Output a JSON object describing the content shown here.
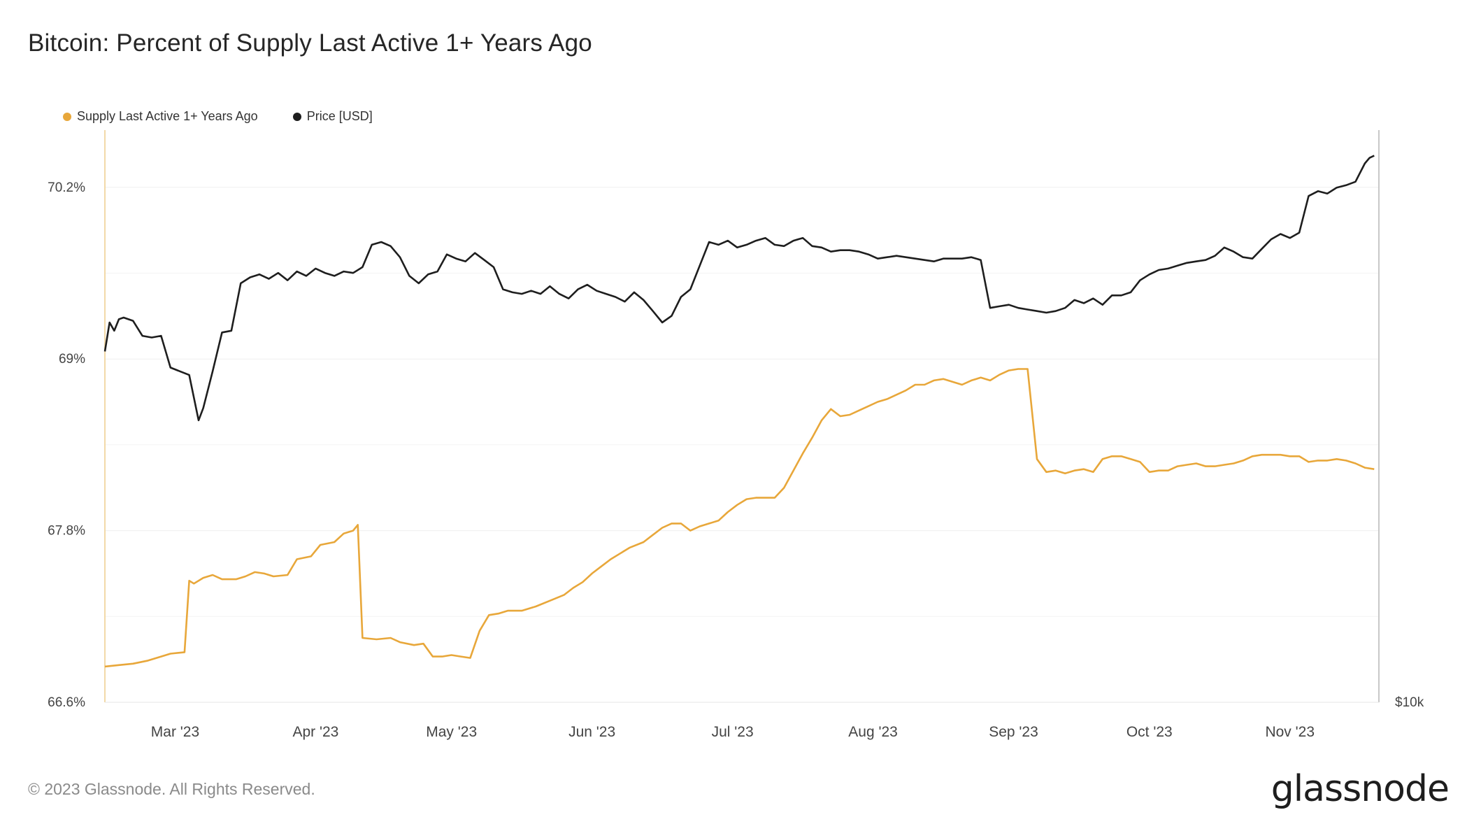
{
  "chart_data": {
    "type": "line",
    "title": "Bitcoin: Percent of Supply Last Active 1+ Years Ago",
    "legend": [
      {
        "name": "Supply Last Active 1+ Years Ago",
        "color": "#e8a73a"
      },
      {
        "name": "Price [USD]",
        "color": "#1e1e1e"
      }
    ],
    "x_ticks": [
      "Mar '23",
      "Apr '23",
      "May '23",
      "Jun '23",
      "Jul '23",
      "Aug '23",
      "Sep '23",
      "Oct '23",
      "Nov '23"
    ],
    "x_range_days": [
      0,
      272
    ],
    "x_tick_days": [
      15,
      45,
      74,
      104,
      134,
      164,
      194,
      223,
      253
    ],
    "y_left": {
      "ticks": [
        "70.2%",
        "69%",
        "67.8%",
        "66.6%"
      ],
      "tick_values": [
        70.2,
        69.0,
        67.8,
        66.6
      ],
      "range": [
        66.6,
        70.6
      ]
    },
    "y_right": {
      "ticks": [
        "$10k"
      ],
      "scale": "log",
      "range_usd": [
        10000,
        40000
      ]
    },
    "series": [
      {
        "name": "Supply Last Active 1+ Years Ago",
        "axis": "left",
        "color": "#e8a73a",
        "points": [
          [
            0,
            66.85
          ],
          [
            3,
            66.86
          ],
          [
            6,
            66.87
          ],
          [
            9,
            66.89
          ],
          [
            12,
            66.92
          ],
          [
            14,
            66.94
          ],
          [
            17,
            66.95
          ],
          [
            18,
            67.45
          ],
          [
            19,
            67.43
          ],
          [
            21,
            67.47
          ],
          [
            23,
            67.49
          ],
          [
            25,
            67.46
          ],
          [
            28,
            67.46
          ],
          [
            30,
            67.48
          ],
          [
            32,
            67.51
          ],
          [
            34,
            67.5
          ],
          [
            36,
            67.48
          ],
          [
            39,
            67.49
          ],
          [
            41,
            67.6
          ],
          [
            44,
            67.62
          ],
          [
            46,
            67.7
          ],
          [
            49,
            67.72
          ],
          [
            51,
            67.78
          ],
          [
            53,
            67.8
          ],
          [
            54,
            67.84
          ],
          [
            55,
            67.05
          ],
          [
            58,
            67.04
          ],
          [
            61,
            67.05
          ],
          [
            63,
            67.02
          ],
          [
            66,
            67.0
          ],
          [
            68,
            67.01
          ],
          [
            70,
            66.92
          ],
          [
            72,
            66.92
          ],
          [
            74,
            66.93
          ],
          [
            76,
            66.92
          ],
          [
            78,
            66.91
          ],
          [
            80,
            67.1
          ],
          [
            82,
            67.21
          ],
          [
            84,
            67.22
          ],
          [
            86,
            67.24
          ],
          [
            89,
            67.24
          ],
          [
            92,
            67.27
          ],
          [
            95,
            67.31
          ],
          [
            98,
            67.35
          ],
          [
            100,
            67.4
          ],
          [
            102,
            67.44
          ],
          [
            104,
            67.5
          ],
          [
            106,
            67.55
          ],
          [
            108,
            67.6
          ],
          [
            110,
            67.64
          ],
          [
            112,
            67.68
          ],
          [
            115,
            67.72
          ],
          [
            117,
            67.77
          ],
          [
            119,
            67.82
          ],
          [
            121,
            67.85
          ],
          [
            123,
            67.85
          ],
          [
            125,
            67.8
          ],
          [
            127,
            67.83
          ],
          [
            129,
            67.85
          ],
          [
            131,
            67.87
          ],
          [
            133,
            67.93
          ],
          [
            135,
            67.98
          ],
          [
            137,
            68.02
          ],
          [
            139,
            68.03
          ],
          [
            141,
            68.03
          ],
          [
            143,
            68.03
          ],
          [
            145,
            68.1
          ],
          [
            147,
            68.22
          ],
          [
            149,
            68.34
          ],
          [
            151,
            68.45
          ],
          [
            153,
            68.57
          ],
          [
            155,
            68.65
          ],
          [
            157,
            68.6
          ],
          [
            159,
            68.61
          ],
          [
            161,
            68.64
          ],
          [
            163,
            68.67
          ],
          [
            165,
            68.7
          ],
          [
            167,
            68.72
          ],
          [
            169,
            68.75
          ],
          [
            171,
            68.78
          ],
          [
            173,
            68.82
          ],
          [
            175,
            68.82
          ],
          [
            177,
            68.85
          ],
          [
            179,
            68.86
          ],
          [
            181,
            68.84
          ],
          [
            183,
            68.82
          ],
          [
            185,
            68.85
          ],
          [
            187,
            68.87
          ],
          [
            189,
            68.85
          ],
          [
            191,
            68.89
          ],
          [
            193,
            68.92
          ],
          [
            195,
            68.93
          ],
          [
            197,
            68.93
          ],
          [
            199,
            68.3
          ],
          [
            201,
            68.21
          ],
          [
            203,
            68.22
          ],
          [
            205,
            68.2
          ],
          [
            207,
            68.22
          ],
          [
            209,
            68.23
          ],
          [
            211,
            68.21
          ],
          [
            213,
            68.3
          ],
          [
            215,
            68.32
          ],
          [
            217,
            68.32
          ],
          [
            219,
            68.3
          ],
          [
            221,
            68.28
          ],
          [
            223,
            68.21
          ],
          [
            225,
            68.22
          ],
          [
            227,
            68.22
          ],
          [
            229,
            68.25
          ],
          [
            231,
            68.26
          ],
          [
            233,
            68.27
          ],
          [
            235,
            68.25
          ],
          [
            237,
            68.25
          ],
          [
            239,
            68.26
          ],
          [
            241,
            68.27
          ],
          [
            243,
            68.29
          ],
          [
            245,
            68.32
          ],
          [
            247,
            68.33
          ],
          [
            249,
            68.33
          ],
          [
            251,
            68.33
          ],
          [
            253,
            68.32
          ],
          [
            255,
            68.32
          ],
          [
            257,
            68.28
          ],
          [
            259,
            68.29
          ],
          [
            261,
            68.29
          ],
          [
            263,
            68.3
          ],
          [
            265,
            68.29
          ],
          [
            267,
            68.27
          ],
          [
            269,
            68.24
          ],
          [
            271,
            68.23
          ]
        ]
      },
      {
        "name": "Price [USD]",
        "axis": "right",
        "color": "#1e1e1e",
        "points": [
          [
            0,
            23400
          ],
          [
            1,
            25100
          ],
          [
            2,
            24600
          ],
          [
            3,
            25300
          ],
          [
            4,
            25400
          ],
          [
            6,
            25200
          ],
          [
            8,
            24300
          ],
          [
            10,
            24200
          ],
          [
            12,
            24300
          ],
          [
            14,
            22500
          ],
          [
            16,
            22300
          ],
          [
            18,
            22100
          ],
          [
            20,
            19800
          ],
          [
            21,
            20400
          ],
          [
            23,
            22300
          ],
          [
            25,
            24500
          ],
          [
            27,
            24600
          ],
          [
            29,
            27600
          ],
          [
            31,
            28000
          ],
          [
            33,
            28200
          ],
          [
            35,
            27900
          ],
          [
            37,
            28300
          ],
          [
            39,
            27800
          ],
          [
            41,
            28400
          ],
          [
            43,
            28100
          ],
          [
            45,
            28600
          ],
          [
            47,
            28300
          ],
          [
            49,
            28100
          ],
          [
            51,
            28400
          ],
          [
            53,
            28300
          ],
          [
            55,
            28700
          ],
          [
            57,
            30300
          ],
          [
            59,
            30500
          ],
          [
            61,
            30200
          ],
          [
            63,
            29400
          ],
          [
            65,
            28100
          ],
          [
            67,
            27600
          ],
          [
            69,
            28200
          ],
          [
            71,
            28400
          ],
          [
            73,
            29600
          ],
          [
            75,
            29300
          ],
          [
            77,
            29100
          ],
          [
            79,
            29700
          ],
          [
            81,
            29200
          ],
          [
            83,
            28700
          ],
          [
            85,
            27200
          ],
          [
            87,
            27000
          ],
          [
            89,
            26900
          ],
          [
            91,
            27100
          ],
          [
            93,
            26900
          ],
          [
            95,
            27400
          ],
          [
            97,
            26900
          ],
          [
            99,
            26600
          ],
          [
            101,
            27200
          ],
          [
            103,
            27500
          ],
          [
            105,
            27100
          ],
          [
            107,
            26900
          ],
          [
            109,
            26700
          ],
          [
            111,
            26400
          ],
          [
            113,
            27000
          ],
          [
            115,
            26500
          ],
          [
            117,
            25800
          ],
          [
            119,
            25100
          ],
          [
            121,
            25500
          ],
          [
            123,
            26700
          ],
          [
            125,
            27200
          ],
          [
            127,
            28800
          ],
          [
            129,
            30500
          ],
          [
            131,
            30300
          ],
          [
            133,
            30600
          ],
          [
            135,
            30100
          ],
          [
            137,
            30300
          ],
          [
            139,
            30600
          ],
          [
            141,
            30800
          ],
          [
            143,
            30300
          ],
          [
            145,
            30200
          ],
          [
            147,
            30600
          ],
          [
            149,
            30800
          ],
          [
            151,
            30200
          ],
          [
            153,
            30100
          ],
          [
            155,
            29800
          ],
          [
            157,
            29900
          ],
          [
            159,
            29900
          ],
          [
            161,
            29800
          ],
          [
            163,
            29600
          ],
          [
            165,
            29300
          ],
          [
            167,
            29400
          ],
          [
            169,
            29500
          ],
          [
            171,
            29400
          ],
          [
            173,
            29300
          ],
          [
            175,
            29200
          ],
          [
            177,
            29100
          ],
          [
            179,
            29300
          ],
          [
            181,
            29300
          ],
          [
            183,
            29300
          ],
          [
            185,
            29400
          ],
          [
            187,
            29200
          ],
          [
            189,
            26000
          ],
          [
            191,
            26100
          ],
          [
            193,
            26200
          ],
          [
            195,
            26000
          ],
          [
            197,
            25900
          ],
          [
            199,
            25800
          ],
          [
            201,
            25700
          ],
          [
            203,
            25800
          ],
          [
            205,
            26000
          ],
          [
            207,
            26500
          ],
          [
            209,
            26300
          ],
          [
            211,
            26600
          ],
          [
            213,
            26200
          ],
          [
            215,
            26800
          ],
          [
            217,
            26800
          ],
          [
            219,
            27000
          ],
          [
            221,
            27800
          ],
          [
            223,
            28200
          ],
          [
            225,
            28500
          ],
          [
            227,
            28600
          ],
          [
            229,
            28800
          ],
          [
            231,
            29000
          ],
          [
            233,
            29100
          ],
          [
            235,
            29200
          ],
          [
            237,
            29500
          ],
          [
            239,
            30100
          ],
          [
            241,
            29800
          ],
          [
            243,
            29400
          ],
          [
            245,
            29300
          ],
          [
            247,
            30000
          ],
          [
            249,
            30700
          ],
          [
            251,
            31100
          ],
          [
            253,
            30800
          ],
          [
            255,
            31200
          ],
          [
            257,
            34100
          ],
          [
            259,
            34500
          ],
          [
            261,
            34300
          ],
          [
            263,
            34800
          ],
          [
            265,
            35000
          ],
          [
            267,
            35300
          ],
          [
            269,
            36900
          ],
          [
            270,
            37400
          ],
          [
            271,
            37600
          ]
        ]
      }
    ]
  },
  "footer": {
    "copyright": "© 2023 Glassnode. All Rights Reserved.",
    "brand": "glassnode"
  }
}
